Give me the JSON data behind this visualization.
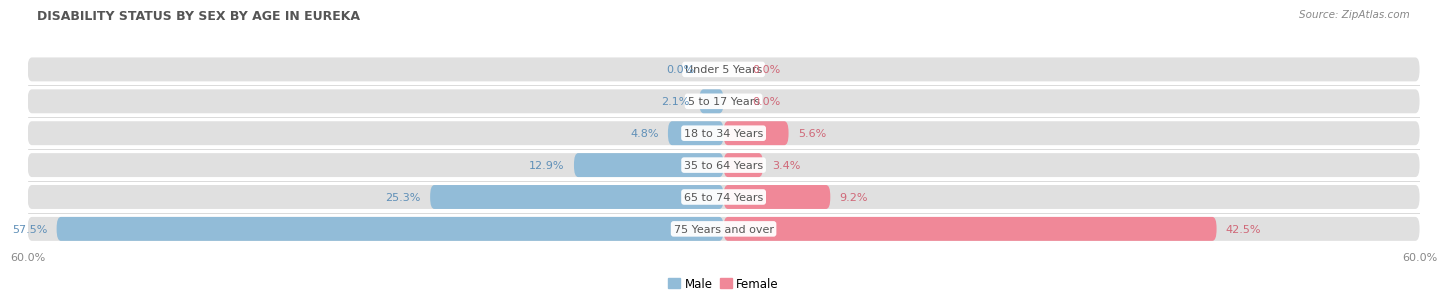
{
  "title": "DISABILITY STATUS BY SEX BY AGE IN EUREKA",
  "source": "Source: ZipAtlas.com",
  "categories": [
    "Under 5 Years",
    "5 to 17 Years",
    "18 to 34 Years",
    "35 to 64 Years",
    "65 to 74 Years",
    "75 Years and over"
  ],
  "male_values": [
    0.0,
    2.1,
    4.8,
    12.9,
    25.3,
    57.5
  ],
  "female_values": [
    0.0,
    0.0,
    5.6,
    3.4,
    9.2,
    42.5
  ],
  "male_color": "#92bcd8",
  "female_color": "#f08898",
  "bar_bg_color": "#e0e0e0",
  "axis_max": 60.0,
  "bg_color": "#ffffff",
  "male_label": "Male",
  "female_label": "Female",
  "title_color": "#555555",
  "source_color": "#888888",
  "male_text_color": "#6090b8",
  "female_text_color": "#d06878",
  "center_label_color": "#555555",
  "row_separator_color": "#cccccc",
  "tick_label_color": "#888888"
}
